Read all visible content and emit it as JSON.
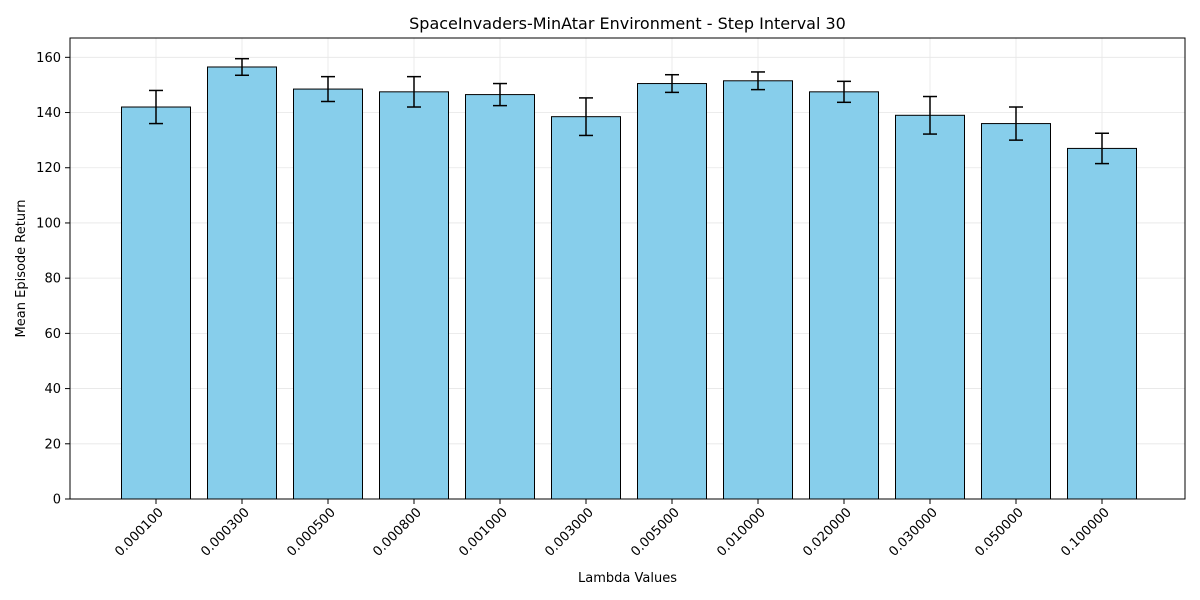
{
  "chart_data": {
    "type": "bar",
    "title": "SpaceInvaders-MinAtar Environment - Step Interval 30",
    "xlabel": "Lambda Values",
    "ylabel": "Mean Episode Return",
    "categories": [
      "0.000100",
      "0.000300",
      "0.000500",
      "0.000800",
      "0.001000",
      "0.003000",
      "0.005000",
      "0.010000",
      "0.020000",
      "0.030000",
      "0.050000",
      "0.100000"
    ],
    "values": [
      142.0,
      156.5,
      148.5,
      147.5,
      146.5,
      138.5,
      150.5,
      151.5,
      147.5,
      139.0,
      136.0,
      127.0
    ],
    "errors": [
      6.0,
      3.0,
      4.5,
      5.5,
      4.0,
      6.8,
      3.2,
      3.2,
      3.8,
      6.8,
      6.0,
      5.5
    ],
    "ylim": [
      0,
      167
    ],
    "yticks": [
      0,
      20,
      40,
      60,
      80,
      100,
      120,
      140,
      160
    ],
    "grid": true,
    "bar_color": "#87ceeb",
    "bar_edge_color": "#000000",
    "error_color": "#000000",
    "grid_color": "#e6e6e6"
  }
}
